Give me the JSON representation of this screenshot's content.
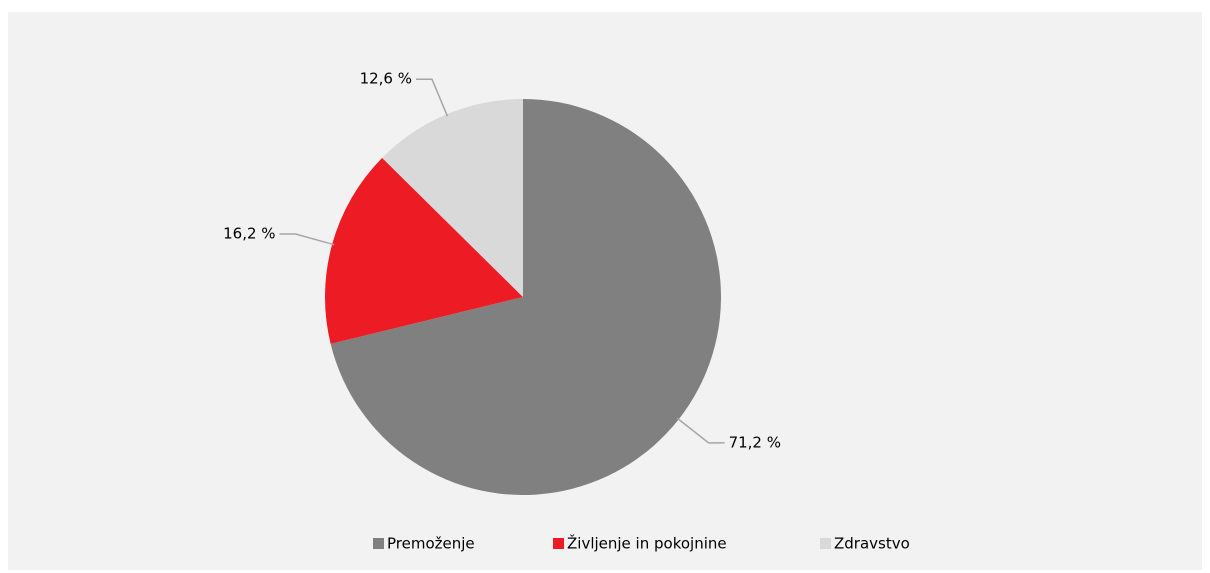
{
  "chart_data": {
    "type": "pie",
    "categories": [
      "Premoženje",
      "Življenje in pokojnine",
      "Zdravstvo"
    ],
    "values": [
      71.2,
      16.2,
      12.6
    ],
    "value_labels": [
      "71,2 %",
      "16,2 %",
      "12,6 %"
    ],
    "colors": [
      "#808080",
      "#ed1c24",
      "#d9d9d9"
    ],
    "legend": "bottom"
  }
}
